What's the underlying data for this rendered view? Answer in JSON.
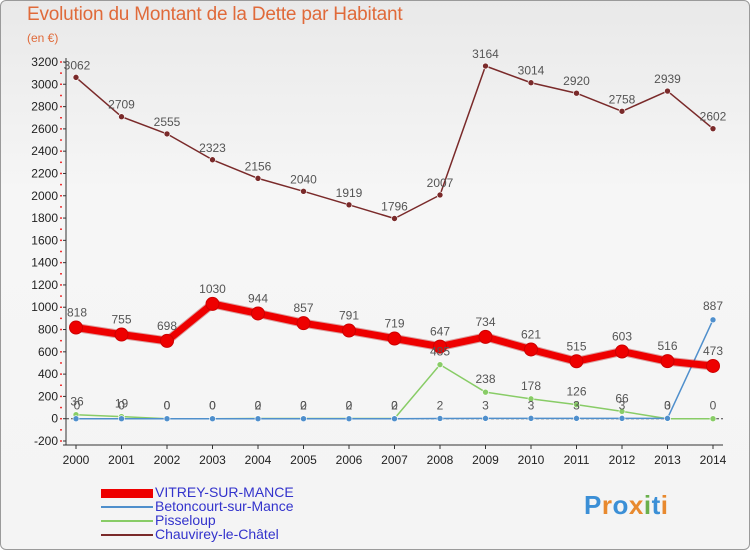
{
  "chart_data": {
    "type": "line",
    "title": "Evolution du Montant de la Dette par Habitant",
    "subtitle": "(en €)",
    "categories": [
      "2000",
      "2001",
      "2002",
      "2003",
      "2004",
      "2005",
      "2006",
      "2007",
      "2008",
      "2009",
      "2010",
      "2011",
      "2012",
      "2013",
      "2014"
    ],
    "y_ticks": [
      "-200",
      "0",
      "200",
      "400",
      "600",
      "800",
      "1000",
      "1200",
      "1400",
      "1600",
      "1800",
      "2000",
      "2200",
      "2400",
      "2600",
      "2800",
      "3000",
      "3200"
    ],
    "ylim": [
      -200,
      3200
    ],
    "grid": false,
    "legend_position": "bottom-left",
    "series": [
      {
        "name": "VITREY-SUR-MANCE",
        "color": "#ee0000",
        "values": [
          818,
          755,
          698,
          1030,
          944,
          857,
          791,
          719,
          647,
          734,
          621,
          515,
          603,
          516,
          473
        ],
        "labels": [
          "818",
          "755",
          "698",
          "1030",
          "944",
          "857",
          "791",
          "719",
          "647",
          "734",
          "621",
          "515",
          "603",
          "516",
          "473"
        ]
      },
      {
        "name": "Betoncourt-sur-Mance",
        "color": "#4f8fcc",
        "values": [
          0,
          0,
          0,
          0,
          0,
          0,
          0,
          0,
          2,
          3,
          3,
          3,
          3,
          3,
          887
        ],
        "labels": [
          "0",
          "0",
          "0",
          "0",
          "0",
          "0",
          "0",
          "0",
          "2",
          "3",
          "3",
          "3",
          "3",
          "3",
          "887"
        ]
      },
      {
        "name": "Pisseloup",
        "color": "#88cc66",
        "values": [
          36,
          19,
          0,
          0,
          2,
          2,
          2,
          2,
          485,
          238,
          178,
          126,
          66,
          0,
          0
        ],
        "labels": [
          "36",
          "19",
          "0",
          "0",
          "2",
          "2",
          "2",
          "2",
          "485",
          "238",
          "178",
          "126",
          "66",
          "0",
          "0"
        ]
      },
      {
        "name": "Chauvirey-le-Châtel",
        "color": "#7a2a2a",
        "values": [
          3062,
          2709,
          2555,
          2323,
          2156,
          2040,
          1919,
          1796,
          2007,
          3164,
          3014,
          2920,
          2758,
          2939,
          2602
        ],
        "labels": [
          "3062",
          "2709",
          "2555",
          "2323",
          "2156",
          "2040",
          "1919",
          "1796",
          "2007",
          "3164",
          "3014",
          "2920",
          "2758",
          "2939",
          "2602"
        ]
      }
    ]
  },
  "logo": {
    "letters": [
      "P",
      "r",
      "o",
      "x",
      "i",
      "t",
      "i"
    ],
    "colors": [
      "#3b8fd6",
      "#e8892e",
      "#3b8fd6",
      "#e8892e",
      "#6ab04c",
      "#3b8fd6",
      "#e8892e"
    ]
  }
}
